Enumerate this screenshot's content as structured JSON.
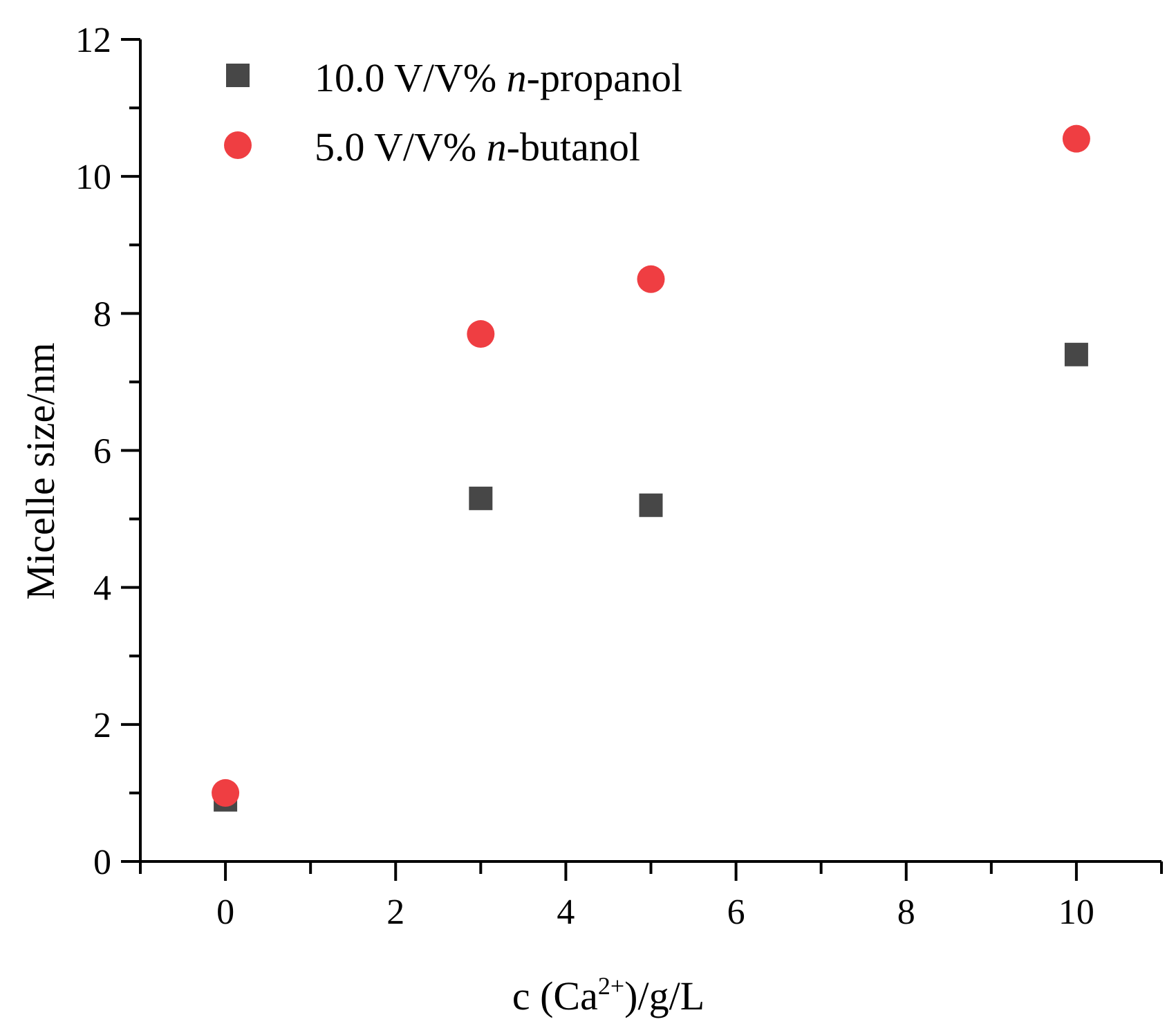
{
  "chart_data": {
    "type": "scatter",
    "xlabel": {
      "prefix": "c (Ca",
      "sup": "2+",
      "suffix": ")/g/L"
    },
    "ylabel": "Micelle size/nm",
    "xlim": [
      -1,
      11
    ],
    "ylim": [
      0,
      12
    ],
    "xticks": [
      0,
      2,
      4,
      6,
      8,
      10
    ],
    "yticks": [
      0,
      2,
      4,
      6,
      8,
      10,
      12
    ],
    "grid": false,
    "legend_position": "top-left",
    "series": [
      {
        "name": "10.0 V/V% n-propanol",
        "label_parts": [
          "10.0 V/V% ",
          "n",
          "-propanol"
        ],
        "marker": "square",
        "color": "#474747",
        "x": [
          0,
          3,
          5,
          10
        ],
        "y": [
          0.9,
          5.3,
          5.2,
          7.4
        ]
      },
      {
        "name": "5.0 V/V% n-butanol",
        "label_parts": [
          "5.0 V/V% ",
          "n",
          "-butanol"
        ],
        "marker": "circle",
        "color": "#ef3e42",
        "x": [
          0,
          3,
          5,
          10
        ],
        "y": [
          1.0,
          7.7,
          8.5,
          10.55
        ]
      }
    ]
  }
}
